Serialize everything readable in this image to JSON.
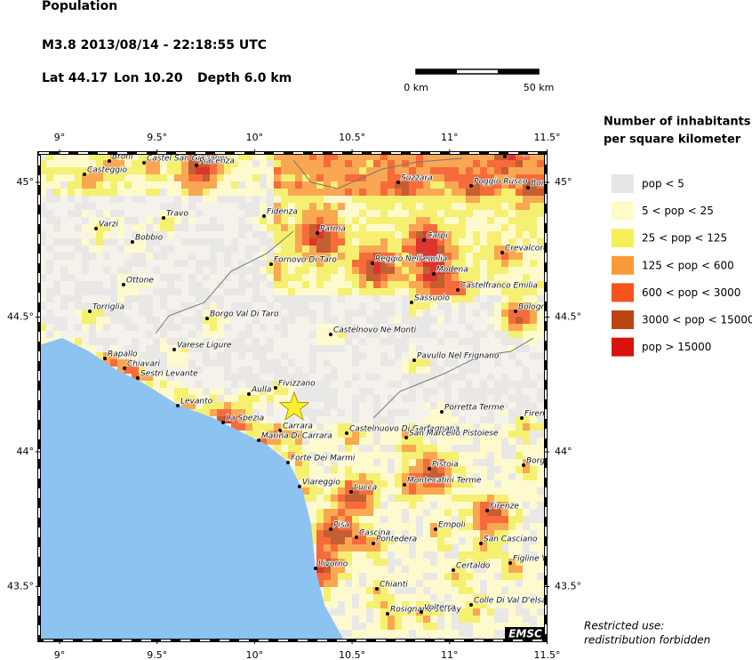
{
  "header": {
    "title": "Population",
    "event": "M3.8  2013/08/14 - 22:18:55 UTC",
    "lat": "Lat 44.17",
    "lon": "Lon  10.20",
    "depth": "Depth  6.0 km"
  },
  "scale_bar": {
    "start": "0 km",
    "end": "50 km"
  },
  "map": {
    "lon_ticks": [
      {
        "value": 9,
        "label": "9°"
      },
      {
        "value": 9.5,
        "label": "9.5°"
      },
      {
        "value": 10,
        "label": "10°"
      },
      {
        "value": 10.5,
        "label": "10.5°"
      },
      {
        "value": 11,
        "label": "11°"
      },
      {
        "value": 11.5,
        "label": "11.5°"
      }
    ],
    "lat_ticks": [
      {
        "value": 45,
        "label": "45°"
      },
      {
        "value": 44.5,
        "label": "44.5°"
      },
      {
        "value": 44,
        "label": "44°"
      },
      {
        "value": 43.5,
        "label": "43.5°"
      }
    ],
    "cities": [
      "Broni",
      "Castel San Giovanni",
      "Piacenza",
      "Ostiglia",
      "Casteggio",
      "Suzzara",
      "Poggio Rusco",
      "Bon",
      "Varzi",
      "Travo",
      "Fidenza",
      "Parma",
      "Carpi",
      "Bobbio",
      "Crevalcore",
      "Reggio Nell'emilia",
      "Modena",
      "Fornovo Di Taro",
      "Ottone",
      "Castelfranco Emilia",
      "Sassuolo",
      "Torriglia",
      "Borgo Val Di Taro",
      "Bologn",
      "Castelnovo Ne Monti",
      "Varese Ligure",
      "Rapallo",
      "Chiavari",
      "Pavullo Nel Frignano",
      "Sestri Levante",
      "Fivizzano",
      "Aulla",
      "Levanto",
      "Porretta Terme",
      "Firenz",
      "La Spezia",
      "Carrara",
      "Castelnuovo Di Garfagnana",
      "Marina Di Carrara",
      "San Marcello Pistoiese",
      "Forte Dei Marmi",
      "Pistoia",
      "Borgo",
      "Viareggio",
      "Montecatini Terme",
      "Lucca",
      "Firenze",
      "Pisa",
      "Empoli",
      "Cascina",
      "Pontedera",
      "San Casciano",
      "Figline V",
      "Livorno",
      "Certaldo",
      "Chianti",
      "Colle Di Val D'elsa",
      "Rosignano Solvay",
      "Volterra"
    ],
    "logo": "EMSC"
  },
  "legend": {
    "title": [
      "Number of inhabitants",
      "per square kilometer"
    ],
    "items": [
      {
        "label": "pop < 5",
        "color": "#e6e6e6"
      },
      {
        "label": "5 < pop < 25",
        "color": "#fffbc8"
      },
      {
        "label": "25 < pop < 125",
        "color": "#f5f05a"
      },
      {
        "label": "125 < pop < 600",
        "color": "#f99a37"
      },
      {
        "label": "600 < pop < 3000",
        "color": "#f7531c"
      },
      {
        "label": "3000 < pop < 15000",
        "color": "#bb4511"
      },
      {
        "label": "pop > 15000",
        "color": "#d7130d"
      }
    ]
  },
  "notice": [
    "Restricted use:",
    "redistribution forbidden"
  ]
}
